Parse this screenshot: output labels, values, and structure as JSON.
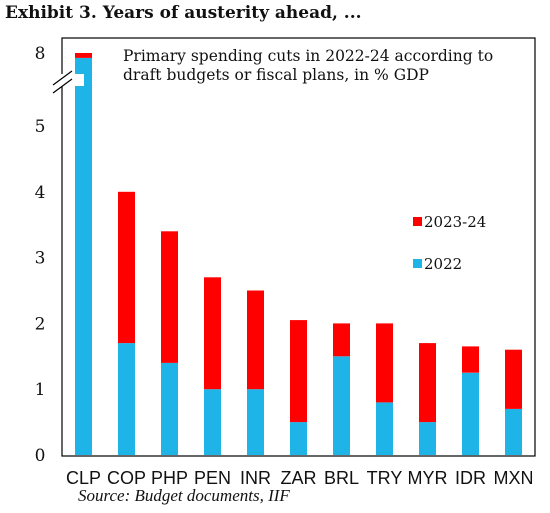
{
  "header": {
    "title": "Exhibit 3. Years of austerity ahead, ..."
  },
  "footer": {
    "source": "Source: Budget documents, IIF"
  },
  "chart_data": {
    "type": "bar",
    "stacked": true,
    "axis_break": true,
    "annotation": "Primary spending cuts in 2022-24 according to draft budgets or fiscal plans, in % GDP",
    "annotation_lines": [
      "Primary spending cuts in 2022-24 according to",
      "draft budgets or fiscal plans, in % GDP"
    ],
    "categories": [
      "CLP",
      "COP",
      "PHP",
      "PEN",
      "INR",
      "ZAR",
      "BRL",
      "TRY",
      "MYR",
      "IDR",
      "MXN"
    ],
    "series": [
      {
        "name": "2022",
        "color": "#1fb4e8",
        "values": [
          7.8,
          1.7,
          1.4,
          1.0,
          1.0,
          0.5,
          1.5,
          0.8,
          0.5,
          1.25,
          0.7
        ]
      },
      {
        "name": "2023-24",
        "color": "#ff0000",
        "values": [
          0.2,
          2.3,
          2.0,
          1.7,
          1.5,
          1.55,
          0.5,
          1.2,
          1.2,
          0.4,
          0.9
        ]
      }
    ],
    "yticks": [
      "0",
      "1",
      "2",
      "3",
      "4",
      "5",
      "8"
    ],
    "ylim": [
      0,
      8
    ],
    "legend": {
      "placement": "right",
      "order": [
        "2023-24",
        "2022"
      ]
    },
    "grid": false
  }
}
